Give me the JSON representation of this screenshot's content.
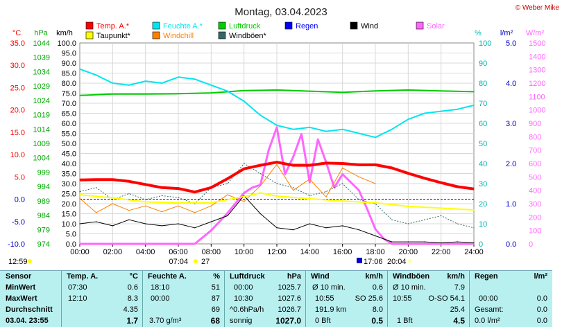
{
  "title": "Montag, 03.04.2023",
  "credit": "© Weber Mike",
  "legend": [
    {
      "label": "Temp. A.*",
      "color": "#ff0000"
    },
    {
      "label": "Feuchte A.*",
      "color": "#00e5ee"
    },
    {
      "label": "Luftdruck",
      "color": "#00cc00"
    },
    {
      "label": "Regen",
      "color": "#0000ff"
    },
    {
      "label": "Wind",
      "color": "#000000"
    },
    {
      "label": "Solar",
      "color": "#ff66ff"
    },
    {
      "label": "Taupunkt*",
      "color": "#ffff00"
    },
    {
      "label": "Windchill",
      "color": "#ff8000"
    },
    {
      "label": "Windböen*",
      "color": "#336666"
    }
  ],
  "axis_units": {
    "temp": "°C",
    "press": "hPa",
    "wind": "km/h",
    "hum": "%",
    "rain": "l/m²",
    "solar": "W/m²"
  },
  "time_markers": {
    "left": "12:59",
    "sunrise": "07:04",
    "sunrise_num": "27",
    "sunset": "17:06",
    "moon": "20:04"
  },
  "chart_data": {
    "type": "line",
    "x_ticks": [
      "00:00",
      "02:00",
      "04:00",
      "06:00",
      "08:00",
      "10:00",
      "12:00",
      "14:00",
      "16:00",
      "18:00",
      "20:00",
      "22:00",
      "24:00"
    ],
    "axes": {
      "temp": {
        "ticks": [
          "35.0",
          "30.0",
          "25.0",
          "20.0",
          "15.0",
          "10.0",
          "5.0",
          "0.0",
          "-5.0",
          "-10.0"
        ],
        "ylim": [
          -10,
          35
        ],
        "color": "#ff0000"
      },
      "press": {
        "ticks": [
          "1044",
          "1039",
          "1034",
          "1029",
          "1024",
          "1019",
          "1014",
          "1009",
          "1004",
          "999",
          "994",
          "989",
          "984",
          "979",
          "974"
        ],
        "ylim": [
          974,
          1044
        ],
        "color": "#00aa00"
      },
      "wind": {
        "ticks": [
          "100.0",
          "95.0",
          "90.0",
          "85.0",
          "80.0",
          "75.0",
          "70.0",
          "65.0",
          "60.0",
          "55.0",
          "50.0",
          "45.0",
          "40.0",
          "35.0",
          "30.0",
          "25.0",
          "20.0",
          "15.0",
          "10.0",
          "5.0",
          "0.0"
        ],
        "ylim": [
          0,
          100
        ],
        "color": "#000000"
      },
      "hum": {
        "ticks": [
          "100",
          "90",
          "80",
          "70",
          "60",
          "50",
          "40",
          "30",
          "20",
          "10",
          "0"
        ],
        "ylim": [
          0,
          100
        ],
        "color": "#00b0b0"
      },
      "rain": {
        "ticks": [
          "5.0",
          "4.0",
          "3.0",
          "2.0",
          "1.0",
          "0.0"
        ],
        "ylim": [
          0,
          5
        ],
        "color": "#0000cc"
      },
      "solar": {
        "ticks": [
          "1500",
          "1400",
          "1300",
          "1200",
          "1100",
          "1000",
          "900",
          "800",
          "700",
          "600",
          "500",
          "400",
          "300",
          "200",
          "100",
          "0"
        ],
        "ylim": [
          0,
          1500
        ],
        "color": "#ff66ff"
      }
    },
    "series": [
      {
        "name": "Temp. A.*",
        "axis": "temp",
        "x": [
          0,
          1,
          2,
          3,
          4,
          5,
          6,
          7,
          8,
          9,
          10,
          11,
          12,
          13,
          14,
          15,
          16,
          17,
          18,
          19,
          20,
          21,
          22,
          23,
          24
        ],
        "values": [
          4.3,
          4.4,
          4.4,
          4.0,
          3.3,
          2.6,
          2.4,
          1.6,
          2.6,
          4.6,
          6.8,
          7.6,
          8.3,
          7.6,
          7.6,
          8.1,
          8.0,
          7.7,
          7.7,
          7.0,
          5.8,
          4.7,
          3.7,
          2.8,
          2.3
        ]
      },
      {
        "name": "Feuchte A.*",
        "axis": "hum",
        "x": [
          0,
          1,
          2,
          3,
          4,
          5,
          6,
          7,
          8,
          9,
          10,
          11,
          12,
          13,
          14,
          15,
          16,
          17,
          18,
          19,
          20,
          21,
          22,
          23,
          24
        ],
        "values": [
          87,
          84,
          80,
          79,
          81,
          80,
          83,
          82,
          79,
          76,
          71,
          64,
          59,
          57,
          58,
          56,
          57,
          55,
          53,
          57,
          62,
          65,
          66,
          67,
          69
        ]
      },
      {
        "name": "Luftdruck",
        "axis": "press",
        "x": [
          0,
          2,
          4,
          6,
          8,
          10,
          12,
          14,
          16,
          18,
          20,
          22,
          24
        ],
        "values": [
          1025.7,
          1026.2,
          1026.2,
          1026.3,
          1026.6,
          1027.4,
          1027.6,
          1027.2,
          1026.8,
          1027.3,
          1027.6,
          1027.3,
          1027.0
        ]
      },
      {
        "name": "Taupunkt*",
        "axis": "temp",
        "x": [
          0,
          2,
          4,
          6,
          8,
          10,
          11,
          12,
          14,
          16,
          18,
          20,
          22,
          24
        ],
        "values": [
          1.0,
          0.3,
          -0.6,
          -0.8,
          -0.8,
          0.6,
          1.4,
          0.7,
          0.1,
          -0.4,
          -0.8,
          -1.6,
          -2.0,
          -2.4
        ]
      },
      {
        "name": "Solar",
        "axis": "solar",
        "x": [
          0,
          7,
          8,
          9,
          10,
          10.5,
          11,
          11.5,
          12,
          12.5,
          13,
          13.5,
          14,
          14.5,
          15,
          15.5,
          16,
          16.5,
          17,
          17.5,
          18,
          18.5,
          19,
          24
        ],
        "values": [
          0,
          0,
          100,
          230,
          380,
          420,
          440,
          700,
          870,
          520,
          650,
          820,
          460,
          780,
          610,
          420,
          520,
          460,
          400,
          260,
          110,
          40,
          0,
          0
        ]
      },
      {
        "name": "Wind",
        "axis": "wind",
        "x": [
          0,
          1,
          2,
          3,
          4,
          5,
          6,
          7,
          8,
          9,
          10,
          11,
          12,
          13,
          14,
          15,
          16,
          17,
          18,
          19,
          20,
          21,
          22,
          23,
          24
        ],
        "values": [
          10,
          11,
          9,
          12,
          10,
          9,
          10,
          8,
          11,
          14,
          24,
          15,
          8,
          7,
          10,
          8,
          9,
          7,
          4,
          1,
          1,
          1,
          0.5,
          1,
          0.5
        ]
      },
      {
        "name": "Windchill",
        "axis": "temp",
        "x": [
          0,
          1,
          2,
          3,
          4,
          5,
          6,
          7,
          8,
          9,
          10,
          11,
          12,
          13,
          14,
          15,
          16,
          17,
          18
        ],
        "values": [
          0.2,
          -3.0,
          -1.0,
          -2.5,
          -1.5,
          -2.8,
          -1.5,
          -3.0,
          -1.5,
          1.0,
          -0.5,
          3.0,
          7.8,
          2.0,
          4.5,
          0.5,
          7.0,
          5.0,
          3.5
        ]
      },
      {
        "name": "Windböen*",
        "axis": "wind",
        "x": [
          0,
          1,
          2,
          3,
          4,
          5,
          6,
          7,
          8,
          9,
          10,
          11,
          12,
          13,
          14,
          15,
          16,
          17,
          18,
          19,
          20,
          21,
          22,
          23,
          24
        ],
        "values": [
          26,
          28,
          22,
          25,
          22,
          24,
          23,
          20,
          28,
          30,
          40,
          35,
          30,
          28,
          24,
          26,
          30,
          22,
          20,
          12,
          10,
          12,
          14,
          10,
          8
        ]
      }
    ]
  },
  "table": {
    "headers": {
      "sensor": "Sensor",
      "temp": "Temp. A.",
      "temp_u": "°C",
      "hum": "Feuchte A.",
      "hum_u": "%",
      "press": "Luftdruck",
      "press_u": "hPa",
      "wind": "Wind",
      "wind_u": "km/h",
      "gust": "Windböen",
      "gust_u": "km/h",
      "rain": "Regen",
      "rain_u": "l/m²"
    },
    "rows": [
      {
        "label": "MinWert",
        "temp_t": "07:30",
        "temp_v": "0.6",
        "hum_t": "18:10",
        "hum_v": "51",
        "press_t": "00:00",
        "press_v": "1025.7",
        "wind_t": "Ø 10 min.",
        "wind_v": "0.6",
        "gust_t": "Ø 10 min.",
        "gust_v": "7.9",
        "rain_t": "",
        "rain_v": ""
      },
      {
        "label": "MaxWert",
        "temp_t": "12:10",
        "temp_v": "8.3",
        "hum_t": "00:00",
        "hum_v": "87",
        "press_t": "10:30",
        "press_v": "1027.6",
        "wind_t": "10:55",
        "wind_v": "SO 25.6",
        "gust_t": "10:55",
        "gust_v": "O-SO 54.1",
        "rain_t": "00:00",
        "rain_v": "0.0"
      },
      {
        "label": "Durchschnitt",
        "temp_t": "",
        "temp_v": "4.35",
        "hum_t": "",
        "hum_v": "69",
        "press_t": "^0.6hPa/h",
        "press_v": "1026.7",
        "wind_t": "191.9 km",
        "wind_v": "8.0",
        "gust_t": "",
        "gust_v": "25.4",
        "rain_t": "Gesamt:",
        "rain_v": "0.0"
      },
      {
        "label": "03.04. 23:55",
        "temp_t": "",
        "temp_v": "1.7",
        "hum_t": "3.70 g/m³",
        "hum_v": "68",
        "press_t": "sonnig",
        "press_v": "1027.0",
        "wind_t": "0 Bft",
        "wind_v": "0.5",
        "gust_t": "1 Bft",
        "gust_v": "4.5",
        "rain_t": "0.0 l/m²",
        "rain_v": "0.0"
      }
    ]
  }
}
